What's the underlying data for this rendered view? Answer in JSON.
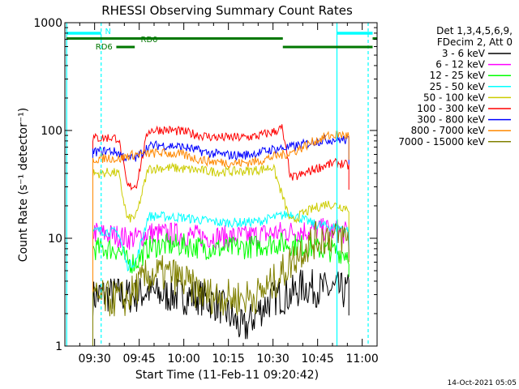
{
  "chart_data": {
    "type": "line",
    "title": "RHESSI Observing Summary Count Rates",
    "xlabel": "Start Time (11-Feb-11 09:20:42)",
    "ylabel": "Count Rate (s⁻¹ detector⁻¹)",
    "y_scale": "log",
    "ylim": [
      1,
      1000
    ],
    "xlim_minutes_after_0920": [
      0,
      105
    ],
    "x_tick_labels": [
      "09:30",
      "09:45",
      "10:00",
      "10:15",
      "10:30",
      "10:45",
      "11:00"
    ],
    "y_tick_labels": [
      "1",
      "10",
      "100",
      "1000"
    ],
    "grid": false,
    "legend_position": "top-right",
    "legend_header": [
      "Det 1,3,4,5,6,9,",
      "FDecim 2, Att 0"
    ],
    "footer_timestamp": "14-Oct-2021 05:05",
    "flags": {
      "labels": [
        "N",
        "RD0",
        "RD6"
      ]
    },
    "series": [
      {
        "name": "3 - 6 keV",
        "color": "#000000",
        "points": [
          [
            9.4,
            2.8
          ],
          [
            12,
            3
          ],
          [
            18,
            3
          ],
          [
            21,
            2.9
          ],
          [
            25,
            3
          ],
          [
            28,
            3.3
          ],
          [
            31,
            3
          ],
          [
            35,
            3
          ],
          [
            40,
            2.9
          ],
          [
            45,
            2.9
          ],
          [
            52,
            2.4
          ],
          [
            60,
            1.4
          ],
          [
            65,
            2.1
          ],
          [
            70,
            2.8
          ],
          [
            76,
            3
          ],
          [
            80,
            3.6
          ],
          [
            85,
            3.4
          ],
          [
            88,
            3.3
          ],
          [
            92,
            3.3
          ],
          [
            94,
            3.2
          ],
          [
            95.5,
            3.2
          ]
        ]
      },
      {
        "name": "6 - 12 keV",
        "color": "#ff00ff",
        "points": [
          [
            9.4,
            11.5
          ],
          [
            12,
            11
          ],
          [
            15,
            10.8
          ],
          [
            18,
            10.5
          ],
          [
            21,
            10
          ],
          [
            24,
            10
          ],
          [
            28,
            11.3
          ],
          [
            32,
            11
          ],
          [
            36,
            11
          ],
          [
            40,
            10.8
          ],
          [
            44,
            10.5
          ],
          [
            48,
            10.3
          ],
          [
            52,
            10.3
          ],
          [
            56,
            10.3
          ],
          [
            60,
            10.4
          ],
          [
            65,
            10.7
          ],
          [
            70,
            11.2
          ],
          [
            76,
            11.5
          ],
          [
            80,
            11.8
          ],
          [
            84,
            12
          ],
          [
            88,
            12
          ],
          [
            92,
            11.5
          ],
          [
            95.5,
            11
          ]
        ]
      },
      {
        "name": "12 - 25 keV",
        "color": "#00ff00",
        "points": [
          [
            9.4,
            8
          ],
          [
            12,
            8
          ],
          [
            15,
            8
          ],
          [
            18,
            7.8
          ],
          [
            21,
            6
          ],
          [
            24,
            6
          ],
          [
            28,
            8.2
          ],
          [
            32,
            8.6
          ],
          [
            36,
            8.6
          ],
          [
            40,
            8.6
          ],
          [
            44,
            8.3
          ],
          [
            48,
            8.1
          ],
          [
            52,
            8
          ],
          [
            56,
            8.1
          ],
          [
            60,
            8.2
          ],
          [
            65,
            8.5
          ],
          [
            70,
            9
          ],
          [
            76,
            8.8
          ],
          [
            80,
            8.5
          ],
          [
            84,
            8
          ],
          [
            88,
            7.8
          ],
          [
            92,
            7.5
          ],
          [
            95.5,
            7.3
          ]
        ]
      },
      {
        "name": "25 - 50 keV",
        "color": "#00ffff",
        "points": [
          [
            9.4,
            11.5
          ],
          [
            12,
            11.8
          ],
          [
            15,
            11.5
          ],
          [
            18,
            11.3
          ],
          [
            21,
            5.5
          ],
          [
            24,
            6.2
          ],
          [
            28,
            16
          ],
          [
            32,
            16
          ],
          [
            36,
            15.8
          ],
          [
            40,
            15.5
          ],
          [
            44,
            15
          ],
          [
            48,
            14.5
          ],
          [
            52,
            14
          ],
          [
            56,
            14
          ],
          [
            60,
            14
          ],
          [
            65,
            14.3
          ],
          [
            70,
            15.5
          ],
          [
            76,
            17
          ],
          [
            80,
            15
          ],
          [
            84,
            13.5
          ],
          [
            88,
            13
          ],
          [
            92,
            12.5
          ],
          [
            95.5,
            12
          ]
        ]
      },
      {
        "name": "50 - 100 keV",
        "color": "#cccc00",
        "points": [
          [
            9.4,
            40
          ],
          [
            12,
            40
          ],
          [
            15,
            41
          ],
          [
            18,
            40
          ],
          [
            21,
            15
          ],
          [
            24,
            16
          ],
          [
            28,
            44
          ],
          [
            32,
            45
          ],
          [
            36,
            45
          ],
          [
            40,
            44
          ],
          [
            44,
            43
          ],
          [
            48,
            42
          ],
          [
            52,
            41.5
          ],
          [
            56,
            41.5
          ],
          [
            60,
            42
          ],
          [
            65,
            43
          ],
          [
            70,
            46
          ],
          [
            76,
            14
          ],
          [
            80,
            17
          ],
          [
            84,
            19
          ],
          [
            88,
            21
          ],
          [
            92,
            20
          ],
          [
            95.5,
            19
          ]
        ]
      },
      {
        "name": "100 - 300 keV",
        "color": "#ff0000",
        "points": [
          [
            9.4,
            85
          ],
          [
            12,
            85
          ],
          [
            15,
            86
          ],
          [
            18,
            85
          ],
          [
            21,
            30
          ],
          [
            24,
            31
          ],
          [
            28,
            100
          ],
          [
            32,
            102
          ],
          [
            36,
            100
          ],
          [
            40,
            97
          ],
          [
            44,
            92
          ],
          [
            48,
            88
          ],
          [
            52,
            86
          ],
          [
            56,
            86
          ],
          [
            60,
            86
          ],
          [
            65,
            89
          ],
          [
            70,
            97
          ],
          [
            73,
            105
          ],
          [
            76,
            36
          ],
          [
            80,
            39
          ],
          [
            84,
            44
          ],
          [
            88,
            48
          ],
          [
            92,
            50
          ],
          [
            95.5,
            47
          ]
        ]
      },
      {
        "name": "300 - 800 keV",
        "color": "#0000ff",
        "points": [
          [
            9.4,
            63
          ],
          [
            12,
            64
          ],
          [
            15,
            65
          ],
          [
            18,
            62
          ],
          [
            21,
            55
          ],
          [
            24,
            56
          ],
          [
            28,
            71
          ],
          [
            32,
            73
          ],
          [
            36,
            72
          ],
          [
            40,
            70
          ],
          [
            44,
            66
          ],
          [
            48,
            62
          ],
          [
            52,
            60
          ],
          [
            56,
            59
          ],
          [
            60,
            59
          ],
          [
            65,
            62
          ],
          [
            70,
            67
          ],
          [
            76,
            70
          ],
          [
            80,
            74
          ],
          [
            84,
            79
          ],
          [
            88,
            82
          ],
          [
            92,
            83
          ],
          [
            95.5,
            81
          ]
        ]
      },
      {
        "name": "800 - 7000 keV",
        "color": "#ff8800",
        "points": [
          [
            9.4,
            54
          ],
          [
            12,
            55
          ],
          [
            15,
            56
          ],
          [
            18,
            54
          ],
          [
            21,
            58
          ],
          [
            24,
            60
          ],
          [
            28,
            61
          ],
          [
            32,
            62
          ],
          [
            36,
            61
          ],
          [
            40,
            59
          ],
          [
            44,
            55
          ],
          [
            48,
            52
          ],
          [
            52,
            51
          ],
          [
            56,
            50
          ],
          [
            60,
            50
          ],
          [
            65,
            52
          ],
          [
            70,
            57
          ],
          [
            76,
            62
          ],
          [
            80,
            70
          ],
          [
            84,
            80
          ],
          [
            88,
            88
          ],
          [
            92,
            92
          ],
          [
            95.5,
            89
          ]
        ]
      },
      {
        "name": "7000 - 15000 keV",
        "color": "#808000",
        "points": [
          [
            9.4,
            2.7
          ],
          [
            12,
            2.8
          ],
          [
            15,
            2.7
          ],
          [
            18,
            2.8
          ],
          [
            21,
            2.7
          ],
          [
            24,
            3.5
          ],
          [
            28,
            4.5
          ],
          [
            32,
            4.7
          ],
          [
            36,
            4.6
          ],
          [
            40,
            4
          ],
          [
            44,
            3.3
          ],
          [
            48,
            3
          ],
          [
            52,
            2.9
          ],
          [
            56,
            2.8
          ],
          [
            60,
            2.8
          ],
          [
            65,
            3
          ],
          [
            70,
            3.8
          ],
          [
            76,
            6
          ],
          [
            80,
            8
          ],
          [
            84,
            9.5
          ],
          [
            88,
            10.5
          ],
          [
            92,
            10.5
          ],
          [
            95.5,
            10
          ]
        ]
      }
    ]
  }
}
